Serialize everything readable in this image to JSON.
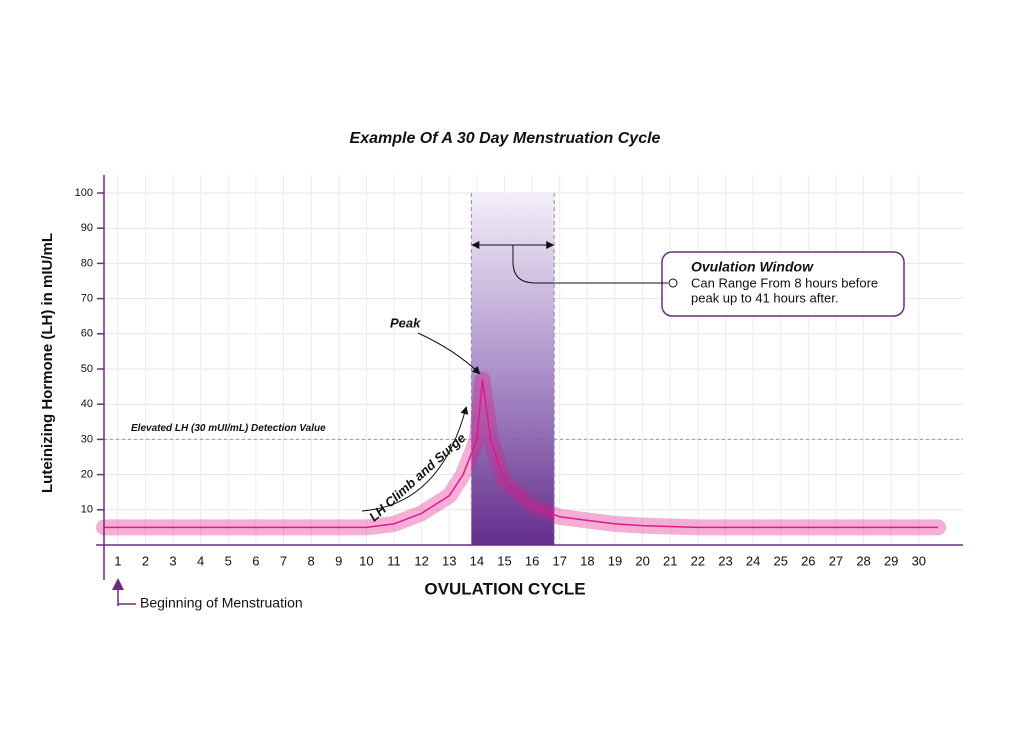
{
  "chart_data": {
    "type": "line",
    "title": "Example Of A 30 Day Menstruation Cycle",
    "x_label": "OVULATION CYCLE",
    "y_label": "Luteinizing Hormone (LH) in mIU/mL",
    "xlim": [
      0.5,
      31.6
    ],
    "xticks": [
      1,
      2,
      3,
      4,
      5,
      6,
      7,
      8,
      9,
      10,
      11,
      12,
      13,
      14,
      15,
      16,
      17,
      18,
      19,
      20,
      21,
      22,
      23,
      24,
      25,
      26,
      27,
      28,
      29,
      30
    ],
    "ylim": [
      0,
      100
    ],
    "yticks": [
      10,
      20,
      30,
      40,
      50,
      60,
      70,
      80,
      90,
      100
    ],
    "grid": true,
    "series": [
      {
        "name": "LH",
        "color": "#e0198a",
        "x": [
          0.5,
          2,
          4,
          6,
          8,
          10,
          11,
          12,
          13,
          13.5,
          14,
          14.2,
          14.5,
          15,
          16,
          17,
          18,
          19,
          20,
          22,
          24,
          26,
          28,
          30,
          30.7
        ],
        "values": [
          5,
          5,
          5,
          5,
          5,
          5,
          6,
          9,
          14,
          20,
          30,
          47,
          30,
          18,
          11,
          8,
          7,
          6,
          5.5,
          5,
          5,
          5,
          5,
          5,
          5
        ]
      }
    ],
    "threshold": {
      "value": 30,
      "label": "Elevated LH (30 mUI/mL) Detection Value"
    },
    "ovulation_window": {
      "start": 13.8,
      "end": 16.8,
      "title": "Ovulation Window",
      "text": [
        "Can Range From 8 hours before",
        "peak up to 41 hours after."
      ]
    },
    "annotations": {
      "peak": "Peak",
      "climb": "LH Climb and Surge",
      "start": "Beginning of Menstruation"
    }
  }
}
